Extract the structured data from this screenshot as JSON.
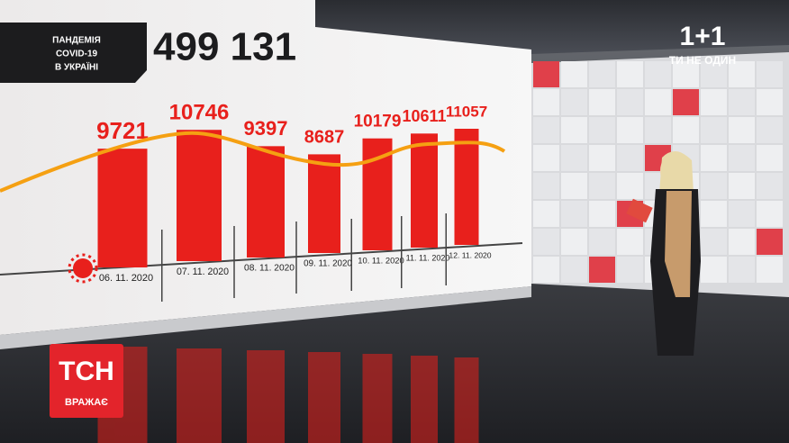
{
  "chart_data": {
    "type": "bar",
    "categories": [
      "06. 11. 2020",
      "07. 11. 2020",
      "08. 11. 2020",
      "09. 11. 2020",
      "10. 11. 2020",
      "11. 11. 2020",
      "12. 11. 2020"
    ],
    "values": [
      9721,
      10746,
      9397,
      8687,
      10179,
      10611,
      11057
    ],
    "color": "#e8201c"
  },
  "header": {
    "label_lines": [
      "ПАНДЕМІЯ",
      "COVID-19",
      "В УКРАЇНІ"
    ],
    "total": "499 131"
  },
  "channel": {
    "logo": "1+1",
    "slogan": "ТИ НЕ ОДИН"
  },
  "show": {
    "logo": "ТСН",
    "tagline": "ВРАЖАЄ"
  }
}
